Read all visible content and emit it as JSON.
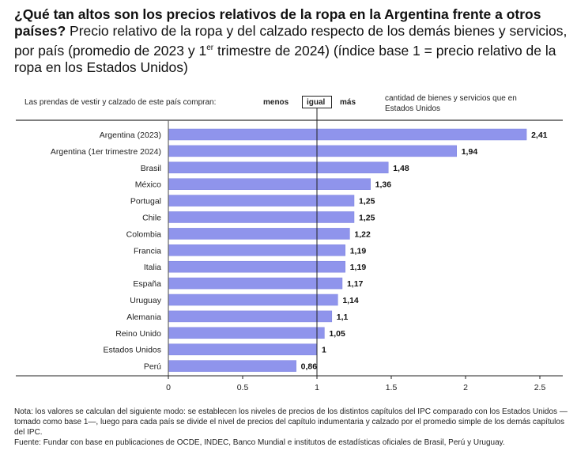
{
  "title_bold": "¿Qué tan altos son los precios relativos de la ropa en la Argentina frente a otros países?",
  "title_rest": " Precio relativo de la ropa y del calzado respecto de los demás bienes y servicios, por país (promedio de 2023 y 1",
  "title_sup": "er",
  "title_end": " trimestre de 2024) (índice base 1 = precio relativo de la ropa en los Estados Unidos)",
  "header": {
    "left": "Las prendas de vestir y calzado de este país compran:",
    "menos": "menos",
    "igual": "igual",
    "mas": "más",
    "right": "cantidad de bienes y servicios que en Estados Unidos"
  },
  "chart_data": {
    "type": "bar",
    "orientation": "horizontal",
    "categories": [
      "Argentina (2023)",
      "Argentina (1er trimestre 2024)",
      "Brasil",
      "México",
      "Portugal",
      "Chile",
      "Colombia",
      "Francia",
      "Italia",
      "España",
      "Uruguay",
      "Alemania",
      "Reino Unido",
      "Estados Unidos",
      "Perú"
    ],
    "values": [
      2.41,
      1.94,
      1.48,
      1.36,
      1.25,
      1.25,
      1.22,
      1.19,
      1.19,
      1.17,
      1.14,
      1.1,
      1.05,
      1,
      0.86
    ],
    "labels": [
      "2,41",
      "1,94",
      "1,48",
      "1,36",
      "1,25",
      "1,25",
      "1,22",
      "1,19",
      "1,19",
      "1,17",
      "1,14",
      "1,1",
      "1,05",
      "1",
      "0,86"
    ],
    "xticks": [
      0,
      0.5,
      1,
      1.5,
      2,
      2.5
    ],
    "xtick_labels": [
      "0",
      "0.5",
      "1",
      "1.5",
      "2",
      "2.5"
    ],
    "xlim": [
      0,
      2.6
    ],
    "reference_line": 1,
    "bar_color": "#8f94ec"
  },
  "notes": {
    "nota": "Nota: los valores se calculan del siguiente modo: se establecen los niveles de precios de los distintos capítulos del IPC comparado con los Estados Unidos —tomado como base 1—, luego para cada país se divide el nivel de precios del capítulo indumentaria y calzado por el promedio simple de los demás capítulos del IPC.",
    "fuente": "Fuente: Fundar con base en publicaciones de OCDE, INDEC, Banco Mundial e institutos de estadísticas oficiales de Brasil, Perú y Uruguay."
  }
}
